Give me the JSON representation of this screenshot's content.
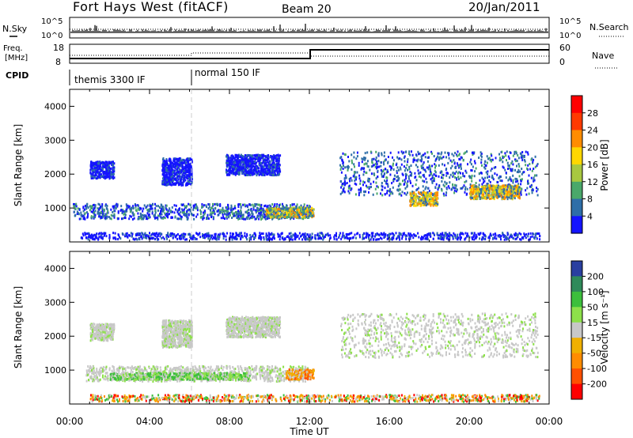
{
  "header": {
    "station": "Fort Hays West (fitACF)",
    "beam": "Beam 20",
    "date": "20/Jan/2011"
  },
  "noise_panel": {
    "left_label": "N.Sky",
    "left_ticks": [
      "10^5",
      "10^0"
    ],
    "right_ticks": [
      "10^5",
      "10^0"
    ],
    "right_label": "N.Search"
  },
  "freq_panel": {
    "left_label_line1": "Freq.",
    "left_label_line2": "[MHz]",
    "left_ticks": [
      "18",
      "8"
    ],
    "right_ticks": [
      "60",
      "0"
    ],
    "right_label": "Nave"
  },
  "cpid_panel": {
    "label": "CPID",
    "modes": [
      {
        "name": "themis 3300 IF",
        "start": 0,
        "end": 6
      },
      {
        "name": "normal 150 IF",
        "start": 6,
        "end": 24
      }
    ]
  },
  "power_colorbar": {
    "label": "Power [dB]",
    "ticks": [
      "28",
      "24",
      "20",
      "16",
      "12",
      "8",
      "4"
    ],
    "colors": [
      "#ff0000",
      "#ff3a00",
      "#ff8c00",
      "#ffd700",
      "#a8c840",
      "#4aa86a",
      "#2e6ea8",
      "#1414ff"
    ]
  },
  "velocity_colorbar": {
    "label": "Velocity [m s⁻¹]",
    "ticks": [
      "200",
      "100",
      "50",
      "15",
      "-15",
      "-50",
      "-100",
      "-200"
    ],
    "colors": [
      "#2a3fa0",
      "#2f8a5a",
      "#3cbf3c",
      "#8de04a",
      "#c8c8c8",
      "#f0b000",
      "#ff8c00",
      "#ff5000",
      "#ff0000"
    ]
  },
  "axes": {
    "ylabel": "Slant Range [km]",
    "xlabel": "Time UT",
    "yticks": [
      "1000",
      "2000",
      "3000",
      "4000"
    ],
    "xticks": [
      "00:00",
      "04:00",
      "08:00",
      "12:00",
      "16:00",
      "20:00",
      "00:00"
    ]
  },
  "chart_data": [
    {
      "type": "heatmap",
      "panel": "power",
      "ylabel": "Slant Range [km]",
      "xlim": [
        0,
        24
      ],
      "ylim": [
        0,
        4500
      ],
      "colorbar": "Power [dB]",
      "scatter_regions": [
        {
          "t0": 0.15,
          "t1": 12.0,
          "r0": 700,
          "r1": 1150,
          "dominant": "blue-green"
        },
        {
          "t0": 9.8,
          "t1": 12.2,
          "r0": 750,
          "r1": 1050,
          "dominant": "green-orange"
        },
        {
          "t0": 1.0,
          "t1": 2.2,
          "r0": 1900,
          "r1": 2400,
          "dominant": "blue"
        },
        {
          "t0": 4.6,
          "t1": 6.1,
          "r0": 1700,
          "r1": 2500,
          "dominant": "blue"
        },
        {
          "t0": 7.8,
          "t1": 10.5,
          "r0": 2000,
          "r1": 2600,
          "dominant": "blue"
        },
        {
          "t0": 13.5,
          "t1": 23.4,
          "r0": 1400,
          "r1": 2700,
          "dominant": "blue-green"
        },
        {
          "t0": 17.0,
          "t1": 18.4,
          "r0": 1100,
          "r1": 1500,
          "dominant": "orange"
        },
        {
          "t0": 20.0,
          "t1": 22.5,
          "r0": 1300,
          "r1": 1700,
          "dominant": "orange"
        },
        {
          "t0": 0.5,
          "t1": 23.5,
          "r0": 100,
          "r1": 300,
          "dominant": "blue"
        }
      ]
    },
    {
      "type": "heatmap",
      "panel": "velocity",
      "ylabel": "Slant Range [km]",
      "xlim": [
        0,
        24
      ],
      "ylim": [
        0,
        4500
      ],
      "colorbar": "Velocity [m s-1]",
      "scatter_regions": [
        {
          "t0": 0.8,
          "t1": 12.0,
          "r0": 700,
          "r1": 1150,
          "dominant": "gray"
        },
        {
          "t0": 2.0,
          "t1": 9.0,
          "r0": 750,
          "r1": 950,
          "dominant": "green"
        },
        {
          "t0": 10.8,
          "t1": 12.2,
          "r0": 750,
          "r1": 1050,
          "dominant": "orange"
        },
        {
          "t0": 1.0,
          "t1": 2.2,
          "r0": 1900,
          "r1": 2400,
          "dominant": "gray"
        },
        {
          "t0": 4.6,
          "t1": 6.1,
          "r0": 1700,
          "r1": 2500,
          "dominant": "gray"
        },
        {
          "t0": 7.8,
          "t1": 10.5,
          "r0": 2000,
          "r1": 2600,
          "dominant": "gray"
        },
        {
          "t0": 13.5,
          "t1": 23.4,
          "r0": 1400,
          "r1": 2700,
          "dominant": "gray"
        },
        {
          "t0": 1.0,
          "t1": 23.5,
          "r0": 100,
          "r1": 300,
          "dominant": "yellow-orange"
        }
      ]
    }
  ]
}
